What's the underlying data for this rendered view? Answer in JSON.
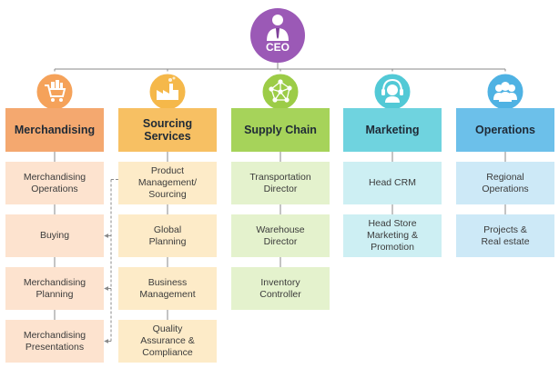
{
  "ceo": {
    "label": "CEO",
    "circle_color": "#9b59b6"
  },
  "connector_color": "#8a8a8a",
  "departments": [
    {
      "name": "Merchandising",
      "icon": "shopping-cart-icon",
      "icon_color": "#f5a25a",
      "header_color": "#f4a86f",
      "cell_color": "#fde3cf",
      "items": [
        "Merchandising\nOperations",
        "Buying",
        "Merchandising\nPlanning",
        "Merchandising\nPresentations"
      ]
    },
    {
      "name": "Sourcing\nServices",
      "icon": "factory-icon",
      "icon_color": "#f5b84a",
      "header_color": "#f7c063",
      "cell_color": "#fdebc8",
      "items": [
        "Product\nManagement/\nSourcing",
        "Global\nPlanning",
        "Business\nManagement",
        "Quality\nAssurance &\nCompliance"
      ]
    },
    {
      "name": "Supply Chain",
      "icon": "network-icon",
      "icon_color": "#9ccc47",
      "header_color": "#a6d35a",
      "cell_color": "#e4f2cd",
      "items": [
        "Transportation\nDirector",
        "Warehouse\nDirector",
        "Inventory\nController"
      ]
    },
    {
      "name": "Marketing",
      "icon": "headset-icon",
      "icon_color": "#52c9d6",
      "header_color": "#6fd3df",
      "cell_color": "#cdeff3",
      "items": [
        "Head CRM",
        "Head Store\nMarketing &\nPromotion"
      ]
    },
    {
      "name": "Operations",
      "icon": "team-icon",
      "icon_color": "#4fb2e3",
      "header_color": "#6cc0ea",
      "cell_color": "#cde9f7",
      "items": [
        "Regional\nOperations",
        "Projects &\nReal estate"
      ]
    }
  ]
}
